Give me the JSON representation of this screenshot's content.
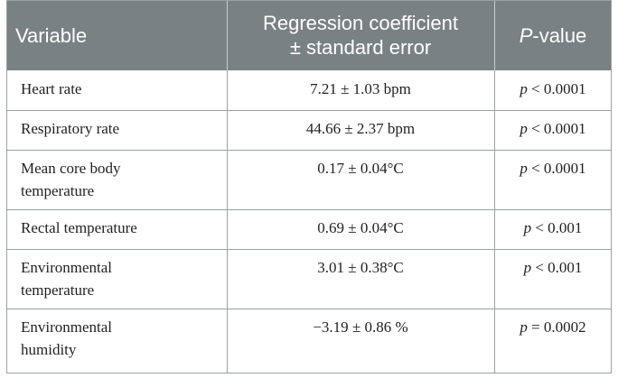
{
  "header": {
    "col1": "Variable",
    "col2_line1": "Regression coefficient",
    "col2_line2": "± standard error",
    "col3_italic": "P",
    "col3_rest": "-value"
  },
  "rows": [
    {
      "variable_line1": "Heart rate",
      "variable_line2": "",
      "coef": "7.21 ± 1.03 bpm",
      "p_symbol": "p",
      "p_rest": " < 0.0001"
    },
    {
      "variable_line1": "Respiratory rate",
      "variable_line2": "",
      "coef": "44.66 ± 2.37 bpm",
      "p_symbol": "p",
      "p_rest": " < 0.0001"
    },
    {
      "variable_line1": "Mean core body",
      "variable_line2": "temperature",
      "coef": "0.17 ± 0.04°C",
      "p_symbol": "p",
      "p_rest": " < 0.0001"
    },
    {
      "variable_line1": "Rectal temperature",
      "variable_line2": "",
      "coef": "0.69 ± 0.04°C",
      "p_symbol": "p",
      "p_rest": " < 0.001"
    },
    {
      "variable_line1": "Environmental",
      "variable_line2": "temperature",
      "coef": "3.01 ± 0.38°C",
      "p_symbol": "p",
      "p_rest": " < 0.001"
    },
    {
      "variable_line1": "Environmental",
      "variable_line2": "humidity",
      "coef": "−3.19 ± 0.86 %",
      "p_symbol": "p",
      "p_rest": " = 0.0002"
    }
  ]
}
